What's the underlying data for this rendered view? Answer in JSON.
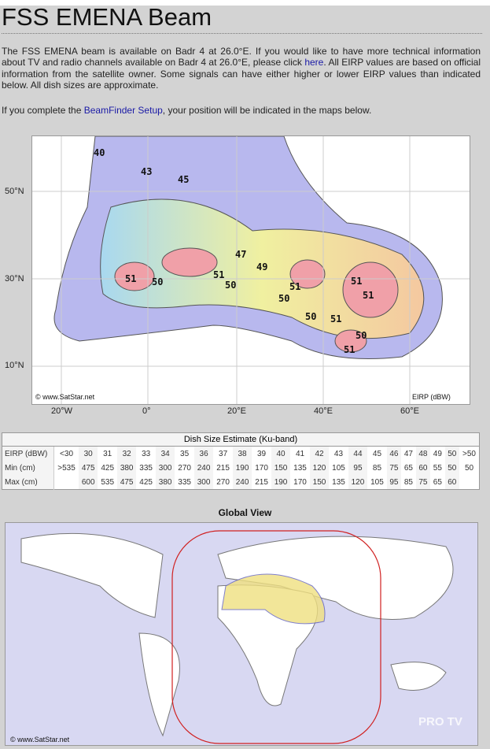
{
  "page": {
    "title": "FSS EMENA Beam",
    "intro_1": "The FSS EMENA beam is available on Badr 4 at 26.0°E. If you would like to have more technical information about TV and radio channels available on Badr 4 at 26.0°E, please click ",
    "intro_link": "here",
    "intro_2": ". All EIRP values are based on official information from the satellite owner. Some signals can have either higher or lower EIRP values than indicated below. All dish sizes are approximate.",
    "setup_1": "If you complete the ",
    "setup_link": "BeamFinder Setup",
    "setup_2": ", your position will be indicated in the maps below."
  },
  "beam_map": {
    "copyright": "© www.SatStar.net",
    "unit": "EIRP (dBW)",
    "lat_labels": [
      "50°N",
      "30°N",
      "10°N"
    ],
    "lon_labels": [
      "20°W",
      "0°",
      "20°E",
      "40°E",
      "60°E"
    ],
    "contours": [
      "40",
      "43",
      "45",
      "47",
      "49",
      "51",
      "50",
      "51",
      "50",
      "51",
      "50",
      "51",
      "51",
      "50",
      "51",
      "50",
      "51"
    ]
  },
  "table": {
    "title": "Dish Size Estimate (Ku-band)",
    "rows": [
      {
        "label": "EIRP (dBW)",
        "values": [
          "<30",
          "30",
          "31",
          "32",
          "33",
          "34",
          "35",
          "36",
          "37",
          "38",
          "39",
          "40",
          "41",
          "42",
          "43",
          "44",
          "45",
          "46",
          "47",
          "48",
          "49",
          "50",
          ">50"
        ]
      },
      {
        "label": "Min (cm)",
        "values": [
          ">535",
          "475",
          "425",
          "380",
          "335",
          "300",
          "270",
          "240",
          "215",
          "190",
          "170",
          "150",
          "135",
          "120",
          "105",
          "95",
          "85",
          "75",
          "65",
          "60",
          "55",
          "50",
          "50"
        ]
      },
      {
        "label": "Max (cm)",
        "values": [
          "",
          "600",
          "535",
          "475",
          "425",
          "380",
          "335",
          "300",
          "270",
          "240",
          "215",
          "190",
          "170",
          "150",
          "135",
          "120",
          "105",
          "95",
          "85",
          "75",
          "65",
          "60",
          ""
        ]
      }
    ]
  },
  "global": {
    "title": "Global View",
    "copyright": "© www.SatStar.net",
    "watermark": "PRO TV"
  },
  "colors": {
    "link": "#1a1aa6",
    "coverage_outline": "#d02020"
  }
}
